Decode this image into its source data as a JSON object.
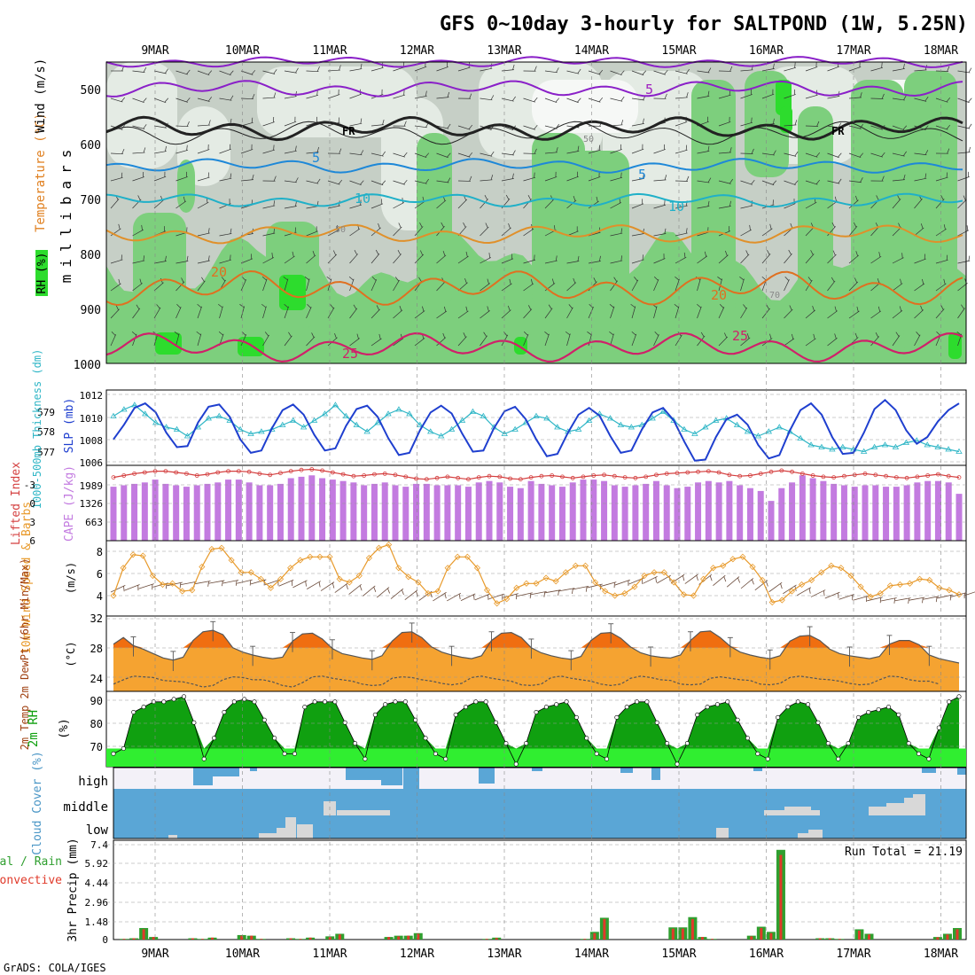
{
  "title": "GFS 0~10day 3-hourly for SALTPOND (1W, 5.25N)",
  "credit": "GrADS: COLA/IGES",
  "dates": [
    "9MAR",
    "10MAR",
    "11MAR",
    "12MAR",
    "13MAR",
    "14MAR",
    "15MAR",
    "16MAR",
    "17MAR",
    "18MAR"
  ],
  "colors": {
    "rh_light": "#c6cfc6",
    "rh_mid": "#7dcf7d",
    "rh_high": "#2ddc2d",
    "slp": "#1f3fcf",
    "thickness": "#2fb6c6",
    "cape": "#c37be0",
    "li": "#d43f3f",
    "wind": "#e89a2b",
    "temp_fill": "#f5a331",
    "temp_peak": "#f06e10",
    "dew_fill": "#f7f78a",
    "rh2m_dark": "#10a010",
    "rh2m_light": "#30ee30",
    "cloud": "#5aa6d6",
    "cloud_blank": "#d8d8d8",
    "precip_total": "#2f9f2f",
    "precip_conv": "#e03a2a"
  },
  "chart_data": [
    {
      "type": "heatmap",
      "name": "upper-air",
      "ylabel": "millibars",
      "yticks": [
        "500",
        "600",
        "700",
        "800",
        "900",
        "1000"
      ],
      "side_labels": {
        "rh": "RH (%)",
        "temp": "Temperature (°C)",
        "wind": "Wind (m/s)"
      },
      "contour_labels": [
        "5",
        "5",
        "FR",
        "FR",
        "5",
        "5",
        "10",
        "10",
        "20",
        "20",
        "25",
        "25",
        "50",
        "50",
        "70"
      ]
    },
    {
      "type": "line",
      "name": "slp-thickness",
      "left_label": "1000-500mb Thickness (dm)",
      "right_label": "SLP (mb)",
      "left_ticks": [
        "579",
        "578",
        "577"
      ],
      "right_ticks": [
        "1012",
        "1010",
        "1008",
        "1006"
      ],
      "series": [
        {
          "name": "SLP",
          "values": [
            1008,
            1009.3,
            1010.8,
            1011.2,
            1010.4,
            1008.6,
            1007.3,
            1007.4,
            1009.5,
            1010.9,
            1011.1,
            1010,
            1008,
            1006.8,
            1007,
            1009,
            1010.6,
            1011.1,
            1010.2,
            1008.4,
            1007,
            1007.2,
            1009.2,
            1010.7,
            1011,
            1010,
            1008.1,
            1006.6,
            1006.8,
            1008.8,
            1010.4,
            1011,
            1010.3,
            1008.5,
            1006.9,
            1007,
            1009,
            1010.5,
            1010.9,
            1009.8,
            1008,
            1006.5,
            1006.7,
            1008.6,
            1010.2,
            1010.8,
            1010.1,
            1008.3,
            1006.8,
            1007,
            1008.9,
            1010.4,
            1010.8,
            1009.7,
            1007.8,
            1006.1,
            1006.2,
            1008.2,
            1009.8,
            1010.2,
            1009.3,
            1007.5,
            1006.3,
            1006.6,
            1008.8,
            1010.6,
            1011.2,
            1010.2,
            1008.2,
            1006.7,
            1006.8,
            1008.6,
            1010.7,
            1011.5,
            1010.6,
            1008.8,
            1007.6,
            1008.2,
            1009.6,
            1010.6,
            1011.2
          ]
        },
        {
          "name": "Thickness",
          "values": [
            578.7,
            579,
            579.2,
            578.8,
            578.4,
            578.2,
            578.1,
            577.8,
            578.2,
            578.6,
            578.7,
            578.5,
            578.1,
            577.9,
            578,
            578.1,
            578.3,
            578.5,
            578.2,
            578.5,
            578.8,
            579.2,
            578.7,
            578.3,
            578,
            578.4,
            578.8,
            579,
            578.8,
            578.3,
            578,
            577.8,
            578.1,
            578.5,
            578.9,
            578.7,
            578.2,
            577.9,
            578.1,
            578.4,
            578.7,
            578.6,
            578.2,
            578,
            578.1,
            578.5,
            578.8,
            578.6,
            578.3,
            578.2,
            578.3,
            578.6,
            578.9,
            578.5,
            578.1,
            577.9,
            578.2,
            578.5,
            578.6,
            578.3,
            578,
            577.8,
            578,
            578.2,
            578,
            577.7,
            577.4,
            577.3,
            577.2,
            577.3,
            577.2,
            577.1,
            577.3,
            577.4,
            577.3,
            577.5,
            577.6,
            577.4,
            577.3,
            577.2,
            577.1
          ]
        }
      ]
    },
    {
      "type": "bar",
      "name": "cape-li",
      "left_label": "Lifted Index",
      "right_label": "CAPE (J/kg)",
      "li_ticks": [
        "-3",
        "0",
        "3",
        "6"
      ],
      "cape_ticks": [
        "1989",
        "1326",
        "663"
      ],
      "series": [
        {
          "name": "CAPE",
          "values": [
            1900,
            1950,
            2000,
            2050,
            2150,
            2000,
            1950,
            1900,
            1950,
            2000,
            2050,
            2150,
            2150,
            2050,
            1950,
            1950,
            2000,
            2200,
            2250,
            2300,
            2200,
            2150,
            2100,
            2050,
            1950,
            2000,
            2050,
            1950,
            1900,
            2000,
            2000,
            1950,
            1950,
            1950,
            1900,
            2050,
            2100,
            2050,
            1900,
            1850,
            2100,
            2000,
            1950,
            1900,
            2050,
            2150,
            2150,
            2100,
            1950,
            1900,
            1950,
            2000,
            2100,
            1950,
            1850,
            1900,
            2050,
            2100,
            2050,
            2100,
            1950,
            1850,
            1750,
            1400,
            1850,
            2050,
            2300,
            2200,
            2100,
            2000,
            1950,
            1900,
            1950,
            1950,
            1900,
            1900,
            1950,
            2050,
            2100,
            2100,
            2050,
            1650
          ]
        },
        {
          "name": "LI",
          "values": [
            -4.2,
            -4.5,
            -4.8,
            -5.0,
            -5.2,
            -5.2,
            -5,
            -4.8,
            -4.5,
            -4.7,
            -5,
            -5.2,
            -5.2,
            -5.1,
            -4.8,
            -4.6,
            -4.9,
            -5.2,
            -5.4,
            -5.5,
            -5.3,
            -5.0,
            -4.7,
            -4.4,
            -4.5,
            -4.7,
            -4.8,
            -4.6,
            -4.3,
            -4.0,
            -3.9,
            -4.1,
            -4.3,
            -4.1,
            -3.9,
            -4.2,
            -4.4,
            -4.3,
            -4.0,
            -3.9,
            -4.2,
            -4.4,
            -4.5,
            -4.3,
            -4.1,
            -4.3,
            -4.5,
            -4.6,
            -4.4,
            -4.2,
            -4.1,
            -4.3,
            -4.6,
            -4.8,
            -4.9,
            -5.0,
            -5.1,
            -5.2,
            -5.0,
            -4.6,
            -4.4,
            -4.5,
            -4.8,
            -5.1,
            -5.3,
            -5.1,
            -4.8,
            -4.5,
            -4.3,
            -4.2,
            -4.4,
            -4.6,
            -4.8,
            -4.6,
            -4.4,
            -4.2,
            -4.1,
            -4.3,
            -4.5,
            -4.7,
            -4.4,
            -4.2
          ]
        }
      ]
    },
    {
      "type": "line",
      "name": "wind10m",
      "left_label": "10m Wind Speed & Barbs",
      "right_label": "(m/s)",
      "yticks": [
        "8",
        "6",
        "4"
      ],
      "ylim": [
        3,
        8.5
      ],
      "values": [
        4,
        6.5,
        7.7,
        7.6,
        5.8,
        5.0,
        5.1,
        4.4,
        4.5,
        6.6,
        8.2,
        8.3,
        7.2,
        6.1,
        6.1,
        5.5,
        4.7,
        5.5,
        6.5,
        7.2,
        7.5,
        7.5,
        7.5,
        5.5,
        5.2,
        5.8,
        7.4,
        8.3,
        8.6,
        6.5,
        5.7,
        5.2,
        4.2,
        4.4,
        6.5,
        7.5,
        7.5,
        6.5,
        4.5,
        3.3,
        3.7,
        4.7,
        5.1,
        5.1,
        5.6,
        5.3,
        6.1,
        6.7,
        6.7,
        5.2,
        4.4,
        4.0,
        4.2,
        4.8,
        5.8,
        6.1,
        6.1,
        5.2,
        4.1,
        4.0,
        5.5,
        6.5,
        6.7,
        7.3,
        7.5,
        6.6,
        5.4,
        3.4,
        3.6,
        4.4,
        5.0,
        5.4,
        6.1,
        6.7,
        6.5,
        5.8,
        4.8,
        3.9,
        4.2,
        4.9,
        5.0,
        5.1,
        5.5,
        5.4,
        4.7,
        4.5,
        4.1
      ]
    },
    {
      "type": "area",
      "name": "temp-dewpt",
      "left_label": "2m Temp 2m DewPt (6hr Min/Max)",
      "right_label": "(°C)",
      "yticks": [
        "32",
        "28",
        "24"
      ],
      "ylim": [
        22,
        32
      ],
      "series": [
        {
          "name": "Temp",
          "values": [
            28.5,
            29.4,
            28.3,
            27.8,
            27.2,
            26.6,
            26.3,
            26.7,
            29.0,
            30.2,
            30.4,
            29.8,
            28.0,
            27.4,
            27.0,
            26.7,
            26.5,
            26.7,
            28.9,
            29.9,
            30.0,
            29.2,
            27.9,
            27.2,
            26.9,
            26.6,
            26.4,
            26.9,
            28.9,
            30.1,
            30.2,
            29.4,
            28.1,
            27.4,
            27.0,
            26.7,
            26.5,
            26.9,
            29.0,
            30.0,
            30.1,
            29.4,
            28.0,
            27.3,
            26.9,
            26.6,
            26.4,
            26.8,
            29.0,
            30.0,
            30.1,
            29.3,
            28.1,
            27.3,
            26.9,
            26.7,
            26.6,
            27.0,
            29.0,
            30.2,
            30.3,
            29.4,
            28.2,
            27.4,
            27.0,
            26.7,
            26.5,
            26.9,
            28.9,
            29.6,
            29.7,
            29.0,
            27.8,
            27.2,
            26.9,
            26.7,
            26.5,
            26.8,
            28.5,
            29.0,
            29.0,
            28.4,
            27.0,
            26.5,
            26.2,
            25.9
          ]
        },
        {
          "name": "DewPt",
          "values": [
            23.0,
            23.6,
            24.1,
            24.0,
            23.9,
            23.5,
            23.4,
            23.3,
            23.0,
            22.6,
            22.8,
            23.6,
            24.0,
            23.9,
            23.6,
            23.6,
            23.3,
            22.8,
            22.6,
            23.2,
            24.0,
            24.1,
            23.8,
            23.6,
            23.4,
            23.0,
            22.8,
            22.9,
            23.8,
            24.0,
            23.9,
            23.6,
            23.4,
            23.1,
            22.9,
            23.1,
            23.9,
            24.1,
            23.8,
            23.6,
            23.4,
            22.9,
            22.8,
            23.0,
            23.9,
            24.1,
            23.8,
            23.6,
            23.4,
            23.0,
            22.8,
            23.0,
            23.8,
            24.1,
            23.9,
            23.6,
            23.5,
            23.0,
            22.9,
            23.0,
            23.8,
            24.0,
            23.8,
            23.6,
            23.5,
            23.0,
            22.9,
            23.1,
            23.9,
            24.1,
            23.9,
            23.7,
            23.6,
            23.4,
            23.1,
            22.9,
            23.0,
            23.6,
            24.1,
            24.0,
            23.6,
            23.4,
            23.4,
            23.0
          ]
        }
      ]
    },
    {
      "type": "area",
      "name": "rh2m",
      "left_label": "2m RH",
      "right_label": "(%)",
      "yticks": [
        "90",
        "80",
        "70"
      ],
      "ylim": [
        63,
        91
      ],
      "values": [
        68,
        70,
        84,
        86,
        88,
        88,
        89,
        90,
        80,
        66,
        74,
        84,
        88,
        89,
        88,
        81,
        74,
        68,
        68,
        86,
        88,
        88,
        88,
        80,
        72,
        66,
        83,
        87,
        88,
        88,
        81,
        74,
        68,
        66,
        83,
        86,
        88,
        88,
        80,
        72,
        64,
        72,
        84,
        86,
        87,
        88,
        82,
        74,
        68,
        66,
        82,
        86,
        88,
        88,
        80,
        72,
        64,
        72,
        83,
        86,
        87,
        88,
        81,
        74,
        68,
        66,
        82,
        86,
        88,
        87,
        80,
        72,
        66,
        72,
        82,
        84,
        85,
        86,
        83,
        72,
        68,
        66,
        78,
        88,
        90
      ]
    },
    {
      "type": "bar",
      "name": "cloud-cover",
      "left_label": "Cloud Cover (%)",
      "levels": [
        "high",
        "middle",
        "low"
      ]
    },
    {
      "type": "bar",
      "name": "precip",
      "left_label": "3hr Precip (mm)",
      "legend": [
        "Total / Rain",
        "Convective"
      ],
      "run_total": "Run Total = 21.19",
      "yticks": [
        "7.4",
        "5.92",
        "4.44",
        "2.96",
        "1.48",
        "0"
      ],
      "ylim": [
        0,
        7.4
      ],
      "total": [
        0.05,
        0.1,
        0.9,
        0.2,
        0,
        0,
        0,
        0.1,
        0.05,
        0.15,
        0,
        0,
        0.35,
        0.3,
        0.05,
        0,
        0,
        0.1,
        0.05,
        0.15,
        0,
        0.25,
        0.45,
        0,
        0,
        0,
        0,
        0.2,
        0.3,
        0.3,
        0.5,
        0,
        0,
        0,
        0,
        0,
        0,
        0.05,
        0.15,
        0,
        0,
        0,
        0,
        0,
        0,
        0,
        0,
        0.05,
        0.6,
        1.7,
        0,
        0,
        0,
        0,
        0,
        0,
        0.95,
        0.95,
        1.75,
        0.2,
        0.05,
        0,
        0,
        0,
        0.3,
        1.0,
        0.6,
        7.0,
        0,
        0,
        0,
        0.1,
        0.1,
        0.05,
        0,
        0.8,
        0.45,
        0,
        0,
        0,
        0,
        0,
        0,
        0.2,
        0.45,
        0.9
      ],
      "convective": [
        0.05,
        0.1,
        0.8,
        0.2,
        0,
        0,
        0,
        0.1,
        0.05,
        0.15,
        0,
        0,
        0.3,
        0.3,
        0.05,
        0,
        0,
        0.1,
        0.05,
        0.15,
        0,
        0.2,
        0.4,
        0,
        0,
        0,
        0,
        0.2,
        0.25,
        0.3,
        0.45,
        0,
        0,
        0,
        0,
        0,
        0,
        0.05,
        0.12,
        0,
        0,
        0,
        0,
        0,
        0,
        0,
        0,
        0.05,
        0.5,
        1.6,
        0,
        0,
        0,
        0,
        0,
        0,
        0.85,
        0.85,
        1.6,
        0.2,
        0.05,
        0,
        0,
        0,
        0.25,
        0.9,
        0.5,
        6.6,
        0,
        0,
        0,
        0.1,
        0.1,
        0.05,
        0,
        0.7,
        0.4,
        0,
        0,
        0,
        0,
        0,
        0,
        0.18,
        0.4,
        0.8
      ]
    }
  ]
}
